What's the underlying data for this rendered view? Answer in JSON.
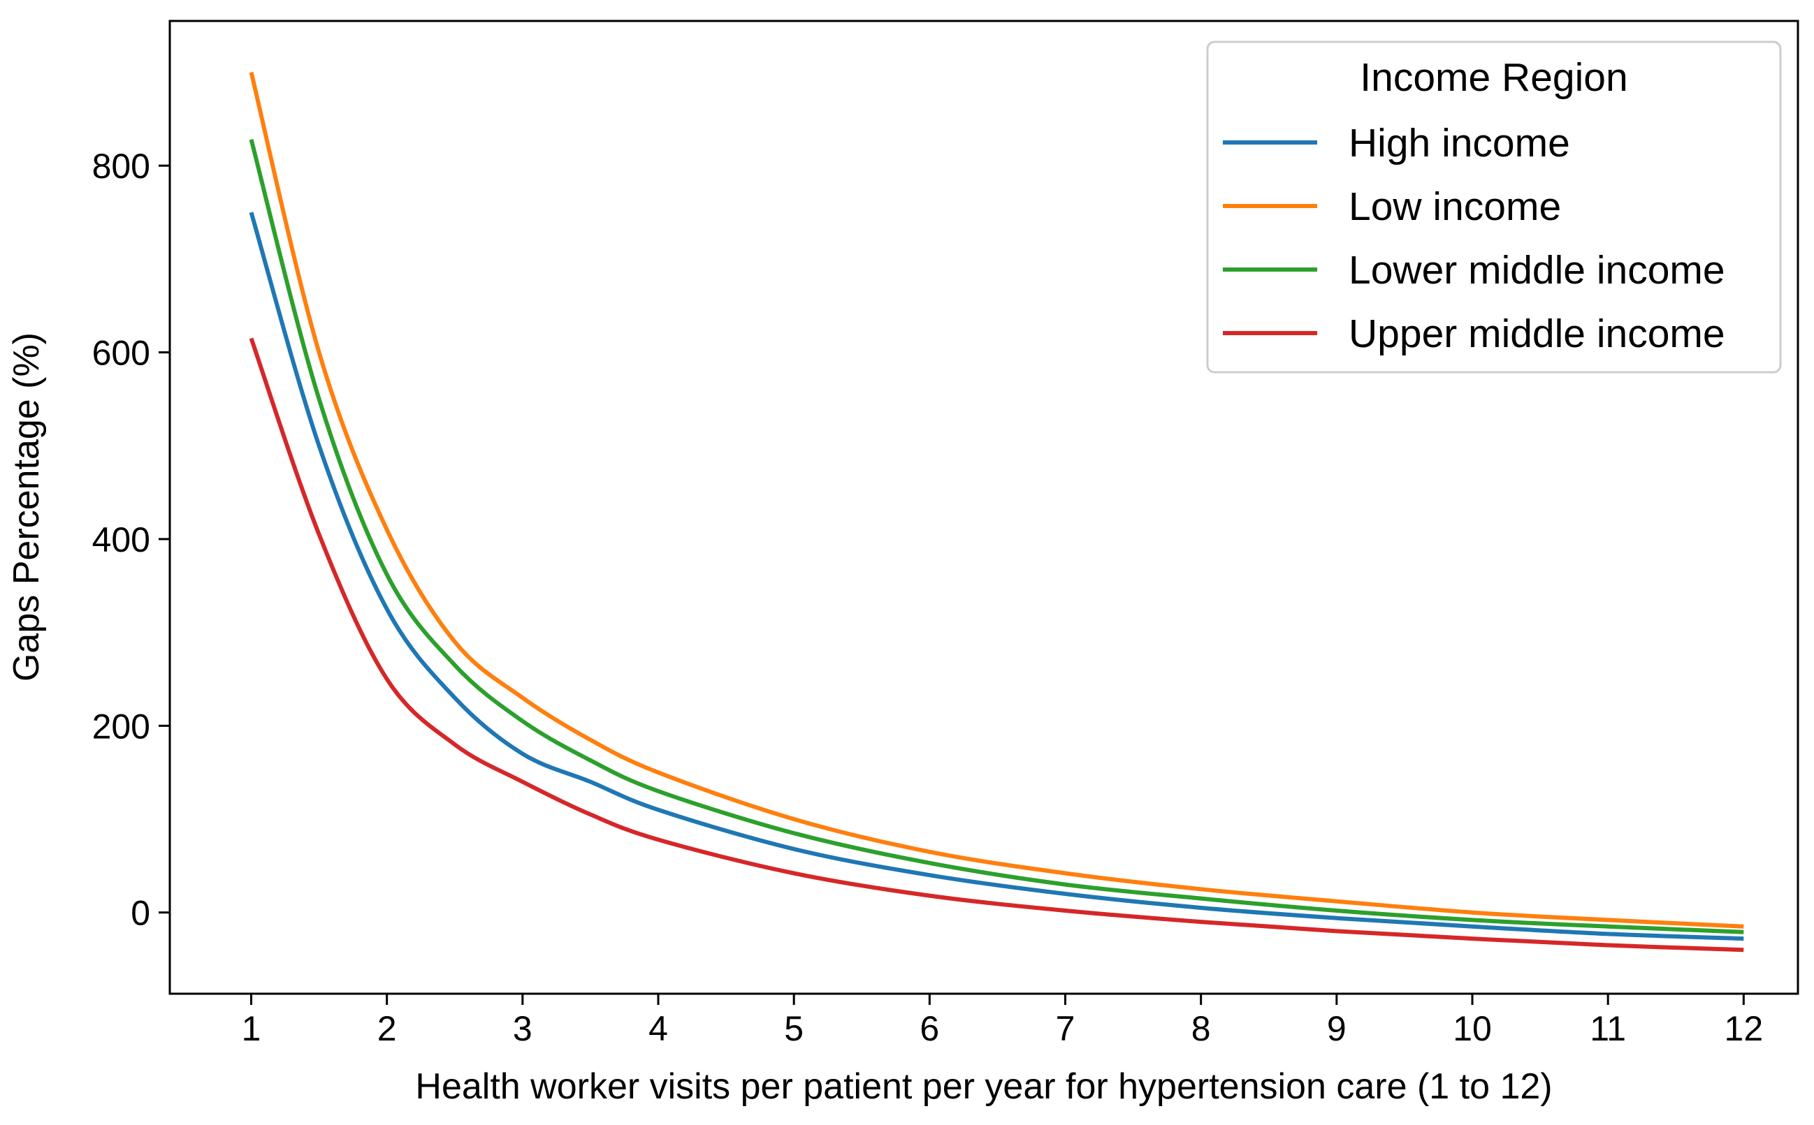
{
  "chart_data": {
    "type": "line",
    "xlabel": "Health worker visits per patient per year for hypertension care (1 to 12)",
    "ylabel": "Gaps Percentage (%)",
    "xlim": [
      0.4,
      12.4
    ],
    "ylim": [
      -87,
      955
    ],
    "x_ticks": [
      1,
      2,
      3,
      4,
      5,
      6,
      7,
      8,
      9,
      10,
      11,
      12
    ],
    "y_ticks": [
      0,
      200,
      400,
      600,
      800
    ],
    "grid": false,
    "legend": {
      "title": "Income Region",
      "position": "top-right"
    },
    "x": [
      1,
      1.5,
      2,
      2.5,
      3,
      3.5,
      4,
      5,
      6,
      7,
      8,
      9,
      10,
      11,
      12
    ],
    "series": [
      {
        "name": "High income",
        "color": "#1f77b4",
        "values": [
          750,
          500,
          325,
          230,
          170,
          140,
          110,
          68,
          40,
          20,
          5,
          -6,
          -15,
          -23,
          -28
        ]
      },
      {
        "name": "Low income",
        "color": "#ff7f0e",
        "values": [
          900,
          600,
          410,
          290,
          230,
          185,
          150,
          100,
          65,
          42,
          25,
          12,
          0,
          -8,
          -15
        ]
      },
      {
        "name": "Lower middle income",
        "color": "#2ca02c",
        "values": [
          828,
          550,
          362,
          265,
          205,
          163,
          130,
          85,
          53,
          30,
          15,
          2,
          -8,
          -15,
          -21
        ]
      },
      {
        "name": "Upper middle income",
        "color": "#d62728",
        "values": [
          615,
          405,
          250,
          180,
          140,
          105,
          78,
          42,
          18,
          2,
          -10,
          -20,
          -28,
          -35,
          -40
        ]
      }
    ]
  }
}
